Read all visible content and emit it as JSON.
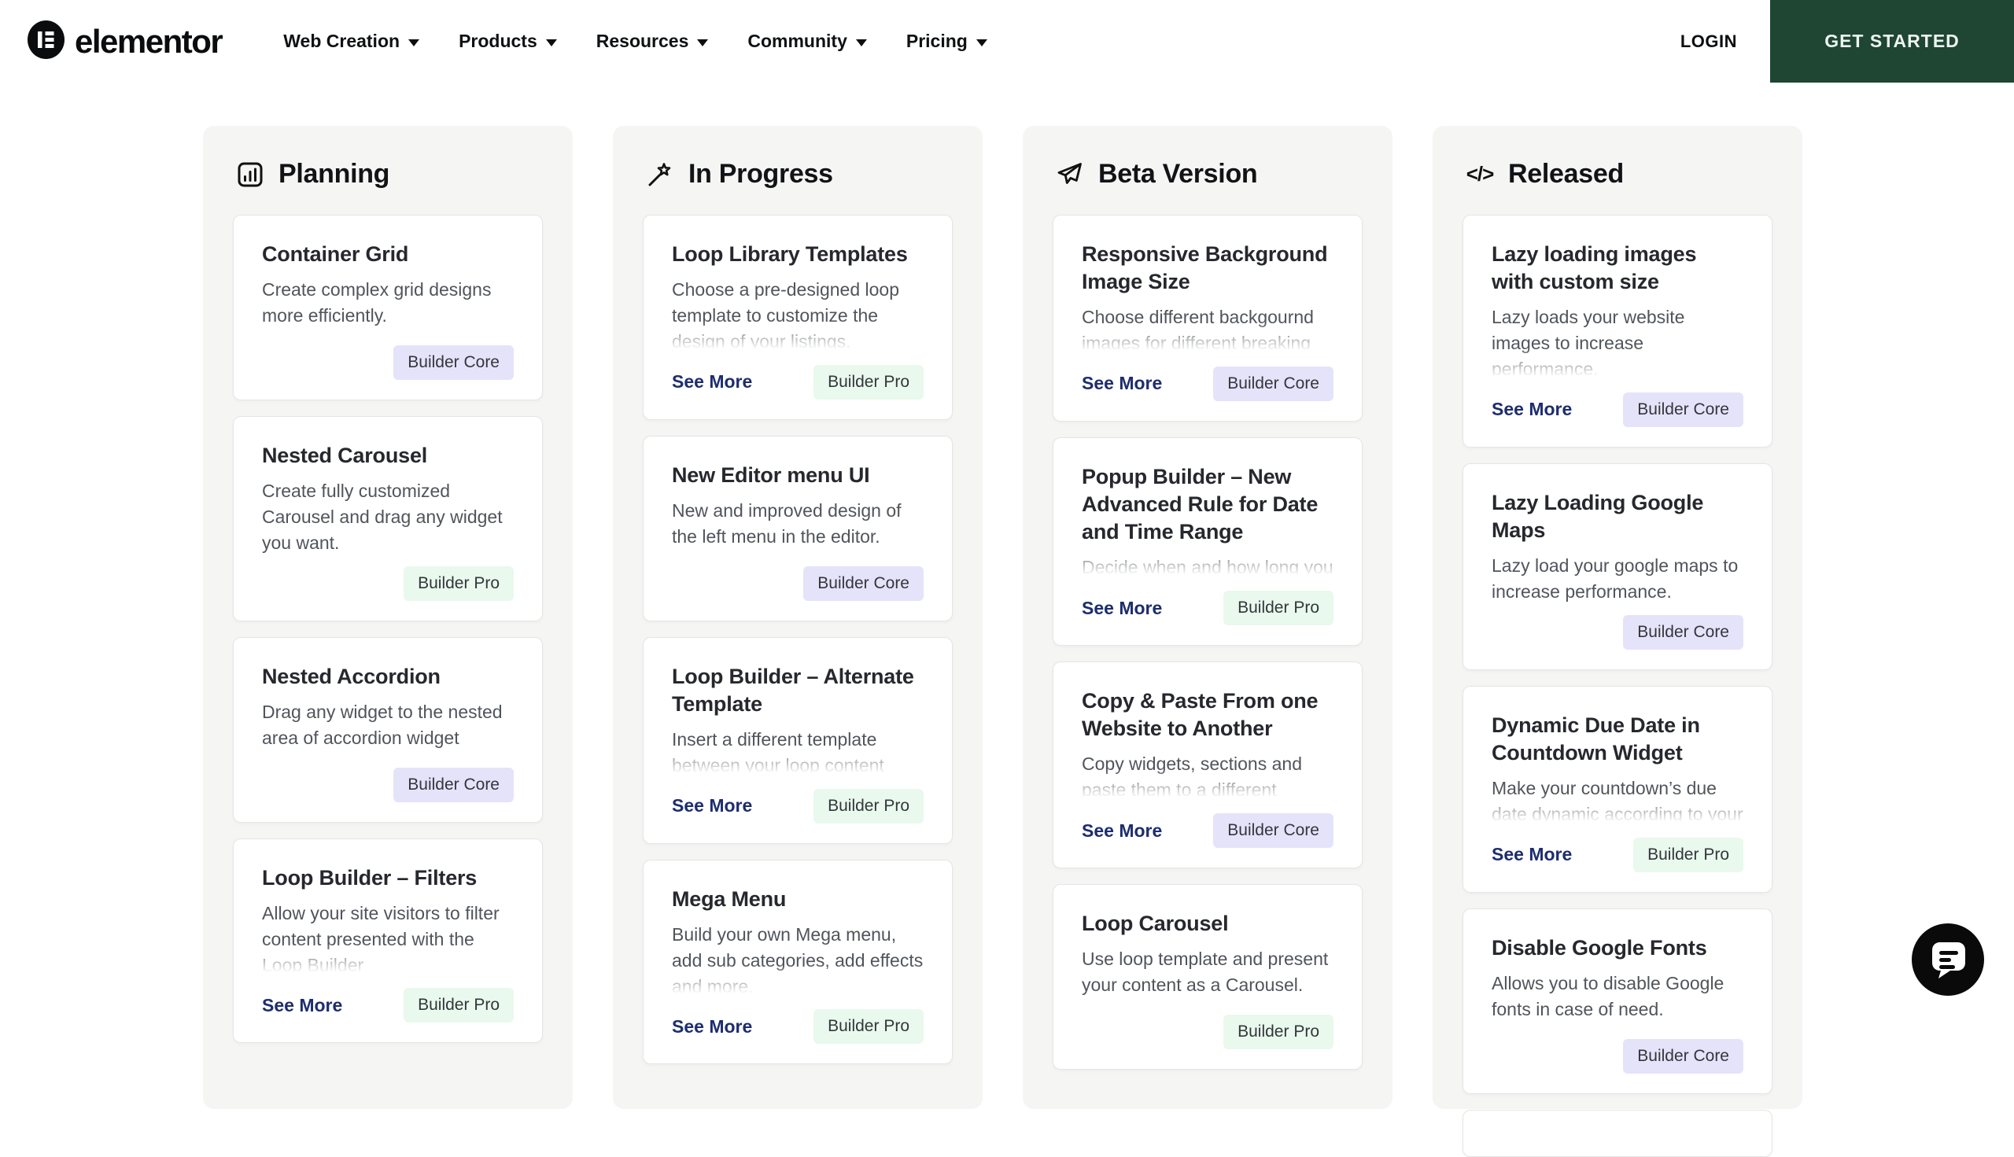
{
  "header": {
    "logo_text": "elementor",
    "nav": [
      {
        "label": "Web Creation"
      },
      {
        "label": "Products"
      },
      {
        "label": "Resources"
      },
      {
        "label": "Community"
      },
      {
        "label": "Pricing"
      }
    ],
    "login_label": "LOGIN",
    "get_started_label": "GET STARTED"
  },
  "colors": {
    "get_started_bg": "#1e4632",
    "badge_core_bg": "#e5e3fa",
    "badge_pro_bg": "#e9f9ed",
    "see_more_link": "#1d2d6e",
    "column_bg": "#f5f5f4"
  },
  "board": {
    "columns": [
      {
        "title": "Planning",
        "icon": "bar-chart-icon",
        "cards": [
          {
            "title": "Container Grid",
            "description": "Create complex grid designs more efficiently.",
            "badge": "Builder Core",
            "badge_type": "core",
            "see_more": null,
            "truncated": false
          },
          {
            "title": "Nested Carousel",
            "description": "Create fully customized Carousel and drag any widget you want.",
            "badge": "Builder Pro",
            "badge_type": "pro",
            "see_more": null,
            "truncated": false
          },
          {
            "title": "Nested Accordion",
            "description": "Drag any widget to the nested area of accordion widget",
            "badge": "Builder Core",
            "badge_type": "core",
            "see_more": null,
            "truncated": false
          },
          {
            "title": "Loop Builder – Filters",
            "description": "Allow your site visitors to filter content presented with the Loop Builder",
            "badge": "Builder Pro",
            "badge_type": "pro",
            "see_more": "See More",
            "truncated": true
          }
        ]
      },
      {
        "title": "In Progress",
        "icon": "magic-wand-icon",
        "cards": [
          {
            "title": "Loop Library Templates",
            "description": "Choose a pre-designed loop template to customize the design of your listings.",
            "badge": "Builder Pro",
            "badge_type": "pro",
            "see_more": "See More",
            "truncated": true
          },
          {
            "title": "New Editor menu UI",
            "description": "New and improved design of the left menu in the editor.",
            "badge": "Builder Core",
            "badge_type": "core",
            "see_more": null,
            "truncated": false
          },
          {
            "title": "Loop Builder – Alternate Template",
            "description": "Insert a different template between your loop content",
            "badge": "Builder Pro",
            "badge_type": "pro",
            "see_more": "See More",
            "truncated": true
          },
          {
            "title": "Mega Menu",
            "description": "Build your own Mega menu, add sub categories, add effects and more.",
            "badge": "Builder Pro",
            "badge_type": "pro",
            "see_more": "See More",
            "truncated": true
          }
        ]
      },
      {
        "title": "Beta Version",
        "icon": "paper-plane-icon",
        "cards": [
          {
            "title": "Responsive Background Image Size",
            "description": "Choose different backgournd images for different breaking",
            "badge": "Builder Core",
            "badge_type": "core",
            "see_more": "See More",
            "truncated": true
          },
          {
            "title": "Popup Builder – New Advanced Rule for Date and Time Range",
            "description": "Decide when and how long you",
            "badge": "Builder Pro",
            "badge_type": "pro",
            "see_more": "See More",
            "truncated": true
          },
          {
            "title": "Copy & Paste From one Website to Another",
            "description": "Copy widgets, sections and paste them to a different",
            "badge": "Builder Core",
            "badge_type": "core",
            "see_more": "See More",
            "truncated": true
          },
          {
            "title": "Loop Carousel",
            "description": "Use loop template and present your content as a Carousel.",
            "badge": "Builder Pro",
            "badge_type": "pro",
            "see_more": null,
            "truncated": false
          }
        ]
      },
      {
        "title": "Released",
        "icon": "code-icon",
        "cards": [
          {
            "title": "Lazy loading images with custom size",
            "description": "Lazy loads your website images to increase performance.",
            "badge": "Builder Core",
            "badge_type": "core",
            "see_more": "See More",
            "truncated": true
          },
          {
            "title": "Lazy Loading Google Maps",
            "description": "Lazy load your google maps to increase performance.",
            "badge": "Builder Core",
            "badge_type": "core",
            "see_more": null,
            "truncated": false
          },
          {
            "title": "Dynamic Due Date in Countdown Widget",
            "description": "Make your countdown’s due date dynamic according to your",
            "badge": "Builder Pro",
            "badge_type": "pro",
            "see_more": "See More",
            "truncated": true
          },
          {
            "title": "Disable Google Fonts",
            "description": "Allows you to disable Google fonts in case of need.",
            "badge": "Builder Core",
            "badge_type": "core",
            "see_more": null,
            "truncated": false
          },
          {
            "partial": true
          }
        ]
      }
    ]
  },
  "chat_widget": {
    "icon": "chat-bubble-icon"
  }
}
